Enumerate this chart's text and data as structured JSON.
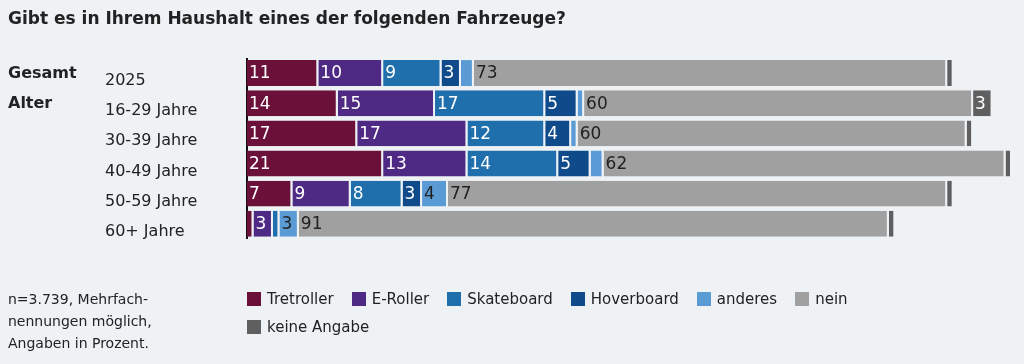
{
  "chart_data": {
    "type": "bar",
    "orientation": "horizontal",
    "stacked": true,
    "title": "Gibt es in Ihrem Haushalt eines der folgenden Fahrzeuge?",
    "categories": [
      "2025",
      "16-29 Jahre",
      "30-39 Jahre",
      "40-49 Jahre",
      "50-59 Jahre",
      "60+ Jahre"
    ],
    "series": [
      {
        "name": "Tretroller",
        "color": "#6b1038",
        "values": [
          11,
          14,
          17,
          21,
          7,
          1
        ],
        "value_labels": [
          "11",
          "14",
          "17",
          "21",
          "7",
          null
        ]
      },
      {
        "name": "E-Roller",
        "color": "#4e2a84",
        "values": [
          10,
          15,
          17,
          13,
          9,
          3
        ],
        "value_labels": [
          "10",
          "15",
          "17",
          "13",
          "9",
          "3"
        ]
      },
      {
        "name": "Skateboard",
        "color": "#1f6fad",
        "values": [
          9,
          17,
          12,
          14,
          8,
          1
        ],
        "value_labels": [
          "9",
          "17",
          "12",
          "14",
          "8",
          null
        ]
      },
      {
        "name": "Hoverboard",
        "color": "#0f4a8a",
        "values": [
          3,
          5,
          4,
          5,
          3,
          0
        ],
        "value_labels": [
          "3",
          "5",
          "4",
          "5",
          "3",
          null
        ]
      },
      {
        "name": "anderes",
        "color": "#5b9bd5",
        "values": [
          2,
          1,
          1,
          2,
          4,
          3
        ],
        "value_labels": [
          null,
          null,
          null,
          null,
          "4",
          "3"
        ]
      },
      {
        "name": "nein",
        "color": "#a0a0a0",
        "values": [
          73,
          60,
          60,
          62,
          77,
          91
        ],
        "value_labels": [
          "73",
          "60",
          "60",
          "62",
          "77",
          "91"
        ]
      },
      {
        "name": "keine Angabe",
        "color": "#5f5f5f",
        "values": [
          1,
          3,
          1,
          1,
          1,
          1
        ],
        "value_labels": [
          null,
          "3",
          null,
          null,
          null,
          null
        ]
      }
    ],
    "legend": "bottom",
    "annotations": [
      "Gesamt",
      "Alter",
      "n=3.739, Mehrfach-nennungen möglich, Angaben in Prozent."
    ]
  }
}
